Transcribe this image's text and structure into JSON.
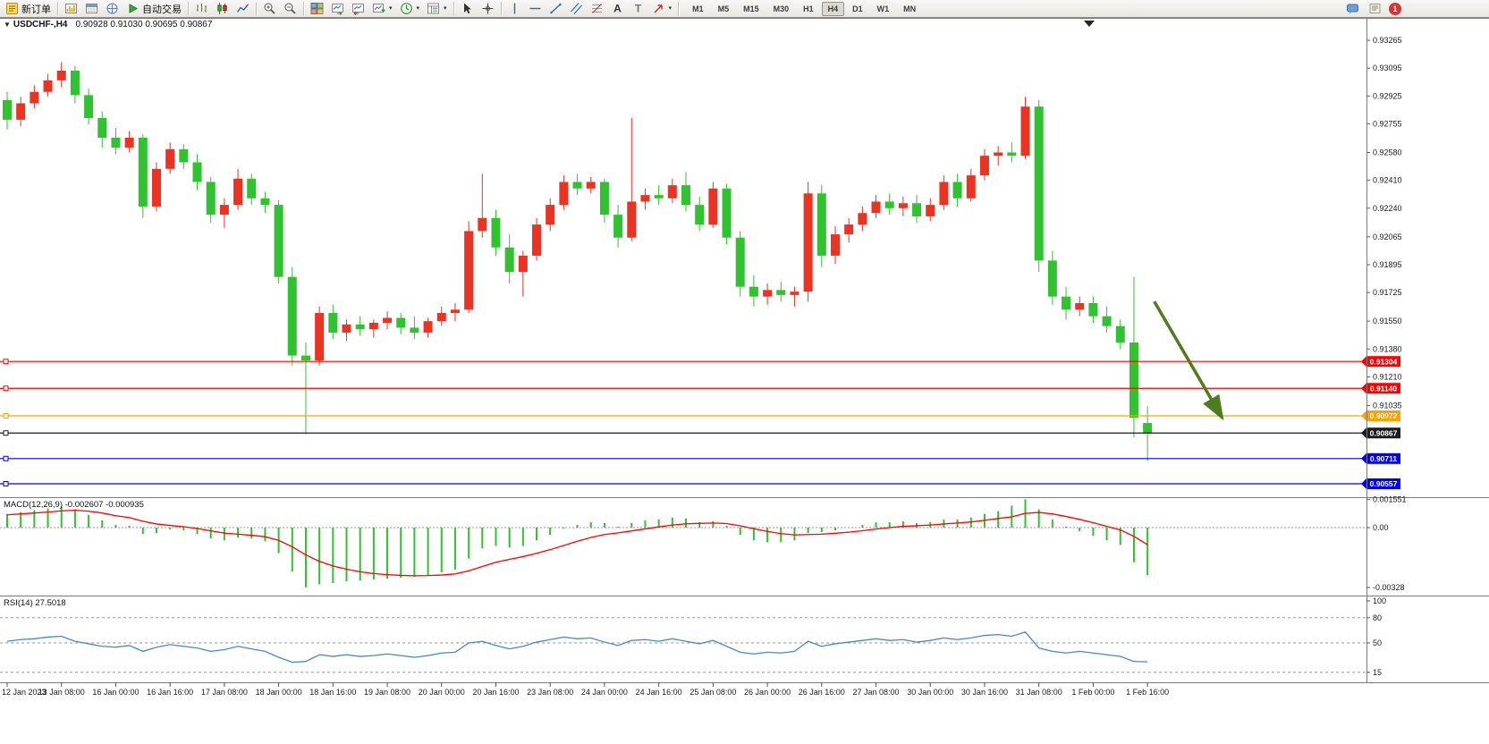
{
  "toolbar": {
    "buttons": [
      {
        "name": "new-order",
        "icon": "new-order-icon",
        "label": "新订单"
      },
      {
        "sep": true
      },
      {
        "name": "market-watch",
        "icon": "market-watch-icon"
      },
      {
        "name": "data-window",
        "icon": "data-window-icon"
      },
      {
        "name": "navigator",
        "icon": "navigator-icon"
      },
      {
        "name": "autotrade",
        "icon": "autotrade-icon",
        "label": "自动交易"
      },
      {
        "sep": true
      },
      {
        "name": "bar-chart-mode",
        "icon": "bar-chart-icon"
      },
      {
        "name": "candlestick-mode",
        "icon": "candlestick-icon"
      },
      {
        "name": "line-chart-mode",
        "icon": "line-chart-icon"
      },
      {
        "sep": true
      },
      {
        "name": "zoom-in",
        "icon": "zoom-in-icon"
      },
      {
        "name": "zoom-out",
        "icon": "zoom-out-icon"
      },
      {
        "sep": true
      },
      {
        "name": "tile-windows",
        "icon": "tile-windows-icon"
      },
      {
        "name": "auto-scroll",
        "icon": "auto-scroll-icon"
      },
      {
        "name": "chart-shift",
        "icon": "chart-shift-icon"
      },
      {
        "name": "new-chart",
        "icon": "new-chart-icon",
        "caret": true
      },
      {
        "name": "periods",
        "icon": "period-icon",
        "caret": true
      },
      {
        "name": "templates",
        "icon": "template-icon",
        "caret": true
      },
      {
        "sep": true
      },
      {
        "name": "cursor",
        "icon": "cursor-icon"
      },
      {
        "name": "crosshair",
        "icon": "crosshair-icon"
      },
      {
        "sep": true
      },
      {
        "name": "vertical-line",
        "icon": "vline-icon"
      },
      {
        "name": "horizontal-line",
        "icon": "hline-icon"
      },
      {
        "name": "trendline",
        "icon": "trendline-icon"
      },
      {
        "name": "equidistant-channel",
        "icon": "channel-icon"
      },
      {
        "name": "fibonacci",
        "icon": "fibonacci-icon"
      },
      {
        "name": "text",
        "icon": "text-icon"
      },
      {
        "name": "text-label",
        "icon": "label-icon"
      },
      {
        "name": "arrows",
        "icon": "arrows-icon",
        "caret": true
      },
      {
        "sep": true
      }
    ],
    "timeframes": [
      "M1",
      "M5",
      "M15",
      "M30",
      "H1",
      "H4",
      "D1",
      "W1",
      "MN"
    ],
    "active_timeframe": "H4",
    "right_icons": [
      {
        "name": "chat",
        "icon": "chat-icon"
      },
      {
        "name": "news",
        "icon": "news-icon"
      }
    ],
    "notification_count": "1"
  },
  "chart": {
    "symbol_period": "USDCHF-,H4",
    "ohlc_text": "0.90928 0.91030 0.90695 0.90867"
  },
  "chart_data": {
    "type": "candlestick",
    "symbol": "USDCHF-",
    "period": "H4",
    "current_bar": {
      "open": 0.90928,
      "high": 0.9103,
      "low": 0.90695,
      "close": 0.90867
    },
    "colors": {
      "up_candle": "#ea3323",
      "down_candle": "#30c230",
      "macd_histogram": "#30c230",
      "macd_signal": "#ff0000",
      "rsi_line": "#4489cc",
      "arrow": "#4e7d1e",
      "axis_text": "#1a1a1a",
      "separator": "#7a7a7a"
    },
    "candles": [
      [
        0.929,
        0.9295,
        0.9272,
        0.9278
      ],
      [
        0.9278,
        0.9292,
        0.9274,
        0.9288
      ],
      [
        0.9288,
        0.9299,
        0.9285,
        0.9295
      ],
      [
        0.9295,
        0.9306,
        0.9292,
        0.9302
      ],
      [
        0.9302,
        0.9313,
        0.9298,
        0.9308
      ],
      [
        0.9308,
        0.9311,
        0.9288,
        0.9293
      ],
      [
        0.9293,
        0.9297,
        0.9275,
        0.9279
      ],
      [
        0.9279,
        0.9283,
        0.9261,
        0.9267
      ],
      [
        0.9267,
        0.9273,
        0.9257,
        0.9261
      ],
      [
        0.9261,
        0.9271,
        0.9258,
        0.9267
      ],
      [
        0.9267,
        0.9269,
        0.9218,
        0.9225
      ],
      [
        0.9225,
        0.9252,
        0.9222,
        0.9248
      ],
      [
        0.9248,
        0.9264,
        0.9245,
        0.926
      ],
      [
        0.926,
        0.9263,
        0.9248,
        0.9252
      ],
      [
        0.9252,
        0.9257,
        0.9235,
        0.924
      ],
      [
        0.924,
        0.9243,
        0.9215,
        0.922
      ],
      [
        0.922,
        0.923,
        0.9212,
        0.9226
      ],
      [
        0.9226,
        0.9248,
        0.9223,
        0.9242
      ],
      [
        0.9242,
        0.9245,
        0.9226,
        0.923
      ],
      [
        0.923,
        0.9234,
        0.9221,
        0.9226
      ],
      [
        0.9226,
        0.9229,
        0.9178,
        0.9182
      ],
      [
        0.9182,
        0.9188,
        0.9128,
        0.9134
      ],
      [
        0.9134,
        0.9142,
        0.9086,
        0.9131
      ],
      [
        0.9131,
        0.9164,
        0.9128,
        0.916
      ],
      [
        0.916,
        0.9165,
        0.9144,
        0.9148
      ],
      [
        0.9148,
        0.9156,
        0.9143,
        0.9153
      ],
      [
        0.9153,
        0.9158,
        0.9146,
        0.915
      ],
      [
        0.915,
        0.9156,
        0.9145,
        0.9154
      ],
      [
        0.9154,
        0.9161,
        0.915,
        0.9157
      ],
      [
        0.9157,
        0.916,
        0.9147,
        0.9151
      ],
      [
        0.9151,
        0.9158,
        0.9144,
        0.9148
      ],
      [
        0.9148,
        0.9157,
        0.9145,
        0.9155
      ],
      [
        0.9155,
        0.9164,
        0.9152,
        0.916
      ],
      [
        0.916,
        0.9166,
        0.9155,
        0.9162
      ],
      [
        0.9162,
        0.9216,
        0.916,
        0.921
      ],
      [
        0.921,
        0.9245,
        0.9206,
        0.9218
      ],
      [
        0.9218,
        0.9223,
        0.9195,
        0.92
      ],
      [
        0.92,
        0.9208,
        0.9178,
        0.9185
      ],
      [
        0.9185,
        0.9198,
        0.917,
        0.9195
      ],
      [
        0.9195,
        0.9218,
        0.9192,
        0.9214
      ],
      [
        0.9214,
        0.923,
        0.921,
        0.9226
      ],
      [
        0.9226,
        0.9244,
        0.9223,
        0.924
      ],
      [
        0.924,
        0.9245,
        0.9232,
        0.9236
      ],
      [
        0.9236,
        0.9243,
        0.9233,
        0.924
      ],
      [
        0.924,
        0.9242,
        0.9215,
        0.922
      ],
      [
        0.922,
        0.9226,
        0.92,
        0.9206
      ],
      [
        0.9206,
        0.9279,
        0.9204,
        0.9228
      ],
      [
        0.9228,
        0.9236,
        0.9223,
        0.9232
      ],
      [
        0.9232,
        0.9238,
        0.9226,
        0.923
      ],
      [
        0.923,
        0.9242,
        0.9227,
        0.9238
      ],
      [
        0.9238,
        0.9246,
        0.9222,
        0.9226
      ],
      [
        0.9226,
        0.9231,
        0.921,
        0.9214
      ],
      [
        0.9214,
        0.924,
        0.9212,
        0.9236
      ],
      [
        0.9236,
        0.9239,
        0.9202,
        0.9206
      ],
      [
        0.9206,
        0.921,
        0.917,
        0.9176
      ],
      [
        0.9176,
        0.9183,
        0.9164,
        0.917
      ],
      [
        0.917,
        0.9178,
        0.9165,
        0.9174
      ],
      [
        0.9174,
        0.9179,
        0.9167,
        0.9171
      ],
      [
        0.9171,
        0.9176,
        0.9164,
        0.9173
      ],
      [
        0.9173,
        0.924,
        0.9167,
        0.9233
      ],
      [
        0.9233,
        0.9238,
        0.9188,
        0.9195
      ],
      [
        0.9195,
        0.9213,
        0.919,
        0.9208
      ],
      [
        0.9208,
        0.9218,
        0.9203,
        0.9214
      ],
      [
        0.9214,
        0.9225,
        0.921,
        0.9221
      ],
      [
        0.9221,
        0.9232,
        0.9218,
        0.9228
      ],
      [
        0.9228,
        0.9233,
        0.922,
        0.9224
      ],
      [
        0.9224,
        0.9231,
        0.9219,
        0.9227
      ],
      [
        0.9227,
        0.9232,
        0.9215,
        0.9219
      ],
      [
        0.9219,
        0.923,
        0.9216,
        0.9226
      ],
      [
        0.9226,
        0.9244,
        0.9223,
        0.924
      ],
      [
        0.924,
        0.9245,
        0.9225,
        0.923
      ],
      [
        0.923,
        0.9248,
        0.9228,
        0.9244
      ],
      [
        0.9244,
        0.926,
        0.9241,
        0.9256
      ],
      [
        0.9256,
        0.9262,
        0.925,
        0.9258
      ],
      [
        0.9258,
        0.9264,
        0.9252,
        0.9256
      ],
      [
        0.9256,
        0.9292,
        0.9254,
        0.9286
      ],
      [
        0.9286,
        0.929,
        0.9185,
        0.9192
      ],
      [
        0.9192,
        0.9198,
        0.9165,
        0.917
      ],
      [
        0.917,
        0.9176,
        0.9156,
        0.9162
      ],
      [
        0.9162,
        0.917,
        0.9158,
        0.9166
      ],
      [
        0.9166,
        0.917,
        0.9154,
        0.9158
      ],
      [
        0.9158,
        0.9164,
        0.9148,
        0.9152
      ],
      [
        0.9152,
        0.9156,
        0.9138,
        0.9142
      ],
      [
        0.9142,
        0.9182,
        0.9084,
        0.9096
      ],
      [
        0.90928,
        0.9103,
        0.90695,
        0.90867
      ]
    ],
    "price_axis_labels": [
      "0.93265",
      "0.93095",
      "0.92925",
      "0.92755",
      "0.92580",
      "0.92410",
      "0.92240",
      "0.92065",
      "0.91895",
      "0.91725",
      "0.91550",
      "0.91380",
      "0.91210",
      "0.91035"
    ],
    "hlines": [
      {
        "price": 0.91304,
        "label": "0.91304",
        "color": "#ff0000"
      },
      {
        "price": 0.9114,
        "label": "0.91140",
        "color": "#ff0000"
      },
      {
        "price": 0.90972,
        "label": "0.90972",
        "color": "#ffa200"
      },
      {
        "price": 0.90867,
        "label": "0.90867",
        "color": "#1c1c1c"
      },
      {
        "price": 0.90711,
        "label": "0.90711",
        "color": "#0000ff"
      },
      {
        "price": 0.90557,
        "label": "0.90557",
        "color": "#0000ff"
      }
    ],
    "time_labels": [
      {
        "text": "12 Jan 2023",
        "bar": 0
      },
      {
        "text": "13 Jan 08:00",
        "bar": 4
      },
      {
        "text": "16 Jan 00:00",
        "bar": 8
      },
      {
        "text": "16 Jan 16:00",
        "bar": 12
      },
      {
        "text": "17 Jan 08:00",
        "bar": 16
      },
      {
        "text": "18 Jan 00:00",
        "bar": 20
      },
      {
        "text": "18 Jan 16:00",
        "bar": 24
      },
      {
        "text": "19 Jan 08:00",
        "bar": 28
      },
      {
        "text": "20 Jan 00:00",
        "bar": 32
      },
      {
        "text": "20 Jan 16:00",
        "bar": 36
      },
      {
        "text": "23 Jan 08:00",
        "bar": 40
      },
      {
        "text": "24 Jan 00:00",
        "bar": 44
      },
      {
        "text": "24 Jan 16:00",
        "bar": 48
      },
      {
        "text": "25 Jan 08:00",
        "bar": 52
      },
      {
        "text": "26 Jan 00:00",
        "bar": 56
      },
      {
        "text": "26 Jan 16:00",
        "bar": 60
      },
      {
        "text": "27 Jan 08:00",
        "bar": 64
      },
      {
        "text": "30 Jan 00:00",
        "bar": 68
      },
      {
        "text": "30 Jan 16:00",
        "bar": 72
      },
      {
        "text": "31 Jan 08:00",
        "bar": 76
      },
      {
        "text": "1 Feb 00:00",
        "bar": 80
      },
      {
        "text": "1 Feb 16:00",
        "bar": 84
      }
    ],
    "macd": {
      "label": "MACD(12,26,9) -0.002607 -0.000935",
      "value_main": -0.002607,
      "value_signal": -0.000935,
      "axis_labels": [
        {
          "text": "0.001551",
          "value": 0.001551
        },
        {
          "text": "0.00",
          "value": 0
        },
        {
          "text": "-0.00328",
          "value": -0.00328
        }
      ],
      "histogram": [
        0.00075,
        0.00085,
        0.00095,
        0.00105,
        0.00115,
        0.001,
        0.0007,
        0.0004,
        0.00015,
        0.0001,
        -0.00035,
        -0.0003,
        -0.0001,
        -0.00015,
        -0.00035,
        -0.0006,
        -0.0007,
        -0.00055,
        -0.0006,
        -0.00075,
        -0.0014,
        -0.0024,
        -0.00328,
        -0.0031,
        -0.00305,
        -0.00295,
        -0.0029,
        -0.00285,
        -0.0028,
        -0.00275,
        -0.0027,
        -0.0026,
        -0.00245,
        -0.0023,
        -0.0017,
        -0.00115,
        -0.001,
        -0.0011,
        -0.001,
        -0.0007,
        -0.0004,
        -5e-05,
        0.00015,
        0.0003,
        0.00025,
        5e-05,
        0.00025,
        0.0004,
        0.00045,
        0.00055,
        0.0005,
        0.0003,
        0.00035,
        0.0001,
        -0.0004,
        -0.0007,
        -0.0008,
        -0.0008,
        -0.0007,
        -0.0003,
        -0.00025,
        -0.00015,
        0,
        0.00015,
        0.0003,
        0.0003,
        0.00035,
        0.00025,
        0.0003,
        0.00045,
        0.00045,
        0.00055,
        0.00075,
        0.0009,
        0.0012,
        0.001551,
        0.001,
        0.00045,
        5e-05,
        -0.0002,
        -0.00045,
        -0.0007,
        -0.00095,
        -0.0019,
        -0.002607
      ],
      "signal": [
        0.0007,
        0.00075,
        0.0008,
        0.00085,
        0.00092,
        0.00095,
        0.0009,
        0.0008,
        0.00065,
        0.00055,
        0.00035,
        0.0002,
        0.00012,
        5e-05,
        -5e-05,
        -0.00018,
        -0.0003,
        -0.00036,
        -0.00042,
        -0.0005,
        -0.0007,
        -0.00105,
        -0.0015,
        -0.00185,
        -0.0021,
        -0.00228,
        -0.00242,
        -0.00252,
        -0.00258,
        -0.00262,
        -0.00264,
        -0.00263,
        -0.0026,
        -0.00254,
        -0.00237,
        -0.00213,
        -0.0019,
        -0.00174,
        -0.00159,
        -0.00141,
        -0.00121,
        -0.00098,
        -0.00075,
        -0.00054,
        -0.00038,
        -0.00029,
        -0.00018,
        -7e-05,
        4e-05,
        0.00014,
        0.00021,
        0.00023,
        0.00025,
        0.00022,
        0.0001,
        -6e-05,
        -0.00021,
        -0.00033,
        -0.0004,
        -0.00038,
        -0.00036,
        -0.00031,
        -0.00025,
        -0.00017,
        -8e-05,
        0,
        7e-05,
        0.0001,
        0.00014,
        0.0002,
        0.00025,
        0.00031,
        0.0004,
        0.0005,
        0.00059,
        0.00078,
        0.00083,
        0.00075,
        0.00061,
        0.00045,
        0.00027,
        7e-05,
        -0.00013,
        -0.00048,
        -0.000935
      ]
    },
    "rsi": {
      "label": "RSI(14) 27.5018",
      "value": 27.5018,
      "levels": [
        80,
        50,
        15
      ],
      "axis_labels": [
        {
          "text": "100",
          "value": 100
        },
        {
          "text": "80",
          "value": 80
        },
        {
          "text": "50",
          "value": 50
        },
        {
          "text": "15",
          "value": 15
        }
      ],
      "values": [
        52,
        54,
        55,
        57,
        58,
        52,
        49,
        46,
        45,
        47,
        40,
        45,
        48,
        46,
        44,
        40,
        42,
        46,
        43,
        40,
        33,
        27,
        28,
        36,
        34,
        36,
        34,
        35,
        37,
        35,
        33,
        35,
        38,
        39,
        50,
        52,
        47,
        43,
        46,
        51,
        54,
        57,
        55,
        56,
        51,
        47,
        53,
        54,
        52,
        55,
        52,
        49,
        53,
        46,
        39,
        37,
        39,
        38,
        40,
        52,
        46,
        49,
        51,
        53,
        55,
        53,
        54,
        51,
        53,
        56,
        54,
        56,
        59,
        60,
        58,
        63,
        44,
        40,
        38,
        40,
        38,
        36,
        34,
        28,
        27.5
      ]
    },
    "annotation_arrow": {
      "from": {
        "bar": 84.5,
        "price": 0.9167
      },
      "to": {
        "bar": 89.5,
        "price": 0.9096
      }
    }
  }
}
